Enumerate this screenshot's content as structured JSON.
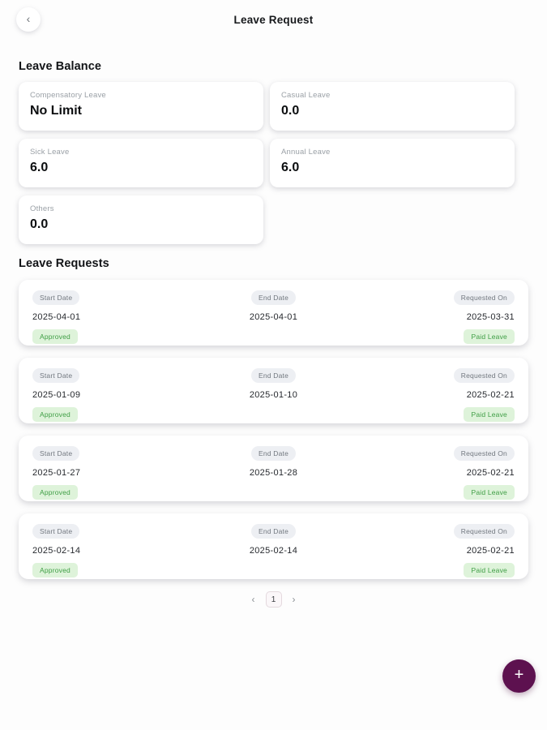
{
  "header": {
    "back_icon": "‹",
    "title": "Leave Request"
  },
  "leave_balance": {
    "heading": "Leave Balance",
    "cards": [
      {
        "label": "Compensatory Leave",
        "value": "No Limit"
      },
      {
        "label": "Casual Leave",
        "value": "0.0"
      },
      {
        "label": "Sick Leave",
        "value": "6.0"
      },
      {
        "label": "Annual Leave",
        "value": "6.0"
      },
      {
        "label": "Others",
        "value": "0.0"
      }
    ]
  },
  "leave_requests": {
    "heading": "Leave Requests",
    "labels": {
      "start": "Start Date",
      "end": "End Date",
      "requested": "Requested On"
    },
    "items": [
      {
        "start_date": "2025-04-01",
        "end_date": "2025-04-01",
        "requested_on": "2025-03-31",
        "status": "Approved",
        "leave_type": "Paid Leave"
      },
      {
        "start_date": "2025-01-09",
        "end_date": "2025-01-10",
        "requested_on": "2025-02-21",
        "status": "Approved",
        "leave_type": "Paid Leave"
      },
      {
        "start_date": "2025-01-27",
        "end_date": "2025-01-28",
        "requested_on": "2025-02-21",
        "status": "Approved",
        "leave_type": "Paid Leave"
      },
      {
        "start_date": "2025-02-14",
        "end_date": "2025-02-14",
        "requested_on": "2025-02-21",
        "status": "Approved",
        "leave_type": "Paid Leave"
      }
    ]
  },
  "pagination": {
    "prev_icon": "‹",
    "current_page": "1",
    "next_icon": "›"
  },
  "fab": {
    "plus_icon": "+"
  },
  "colors": {
    "accent": "#5d114f",
    "badge_bg": "#def3da",
    "badge_text": "#3f9e45",
    "pill_bg": "#edeff3",
    "card_bg": "#ffffff"
  }
}
